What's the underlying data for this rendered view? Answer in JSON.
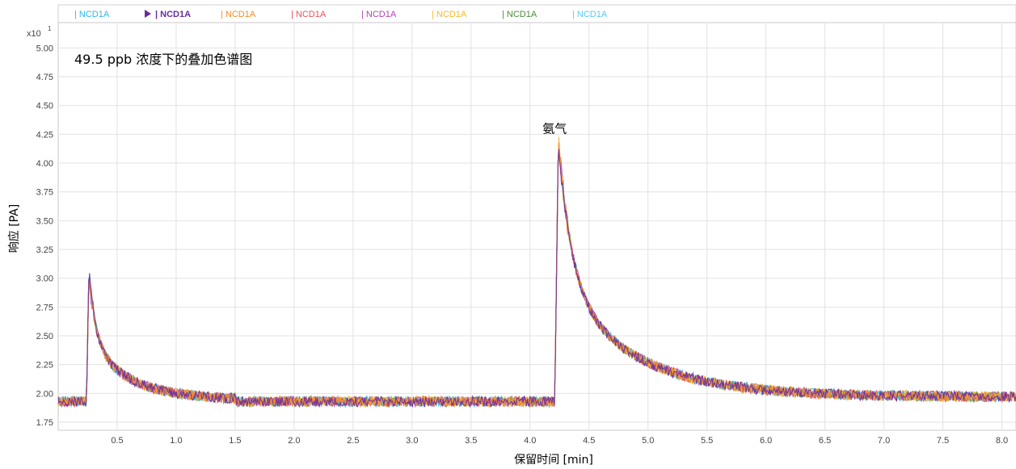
{
  "chart_data": {
    "type": "line",
    "title": "49.5 ppb 浓度下的叠加色谱图",
    "xlabel": "保留时间 [min]",
    "ylabel": "响应 [PA]",
    "y_scale_label": "x10",
    "y_scale_exponent": "1",
    "xlim": [
      0.0,
      8.12
    ],
    "ylim": [
      1.68,
      5.22
    ],
    "x_ticks": [
      "0.5",
      "1.0",
      "1.5",
      "2.0",
      "2.5",
      "3.0",
      "3.5",
      "4.0",
      "4.5",
      "5.0",
      "5.5",
      "6.0",
      "6.5",
      "7.0",
      "7.5",
      "8.0"
    ],
    "y_ticks": [
      "1.75",
      "2.00",
      "2.25",
      "2.50",
      "2.75",
      "3.00",
      "3.25",
      "3.50",
      "3.75",
      "4.00",
      "4.25",
      "4.50",
      "4.75",
      "5.00"
    ],
    "grid": true,
    "legend_position": "top",
    "annotations": [
      {
        "text": "氨气",
        "x": 4.23,
        "y": 4.29
      }
    ],
    "series": [
      {
        "name": "NCD1A",
        "color": "#2EB8E6",
        "active": false
      },
      {
        "name": "NCD1A",
        "color": "#6A2C9E",
        "active": true
      },
      {
        "name": "NCD1A",
        "color": "#F28C28",
        "active": false
      },
      {
        "name": "NCD1A",
        "color": "#E8505B",
        "active": false
      },
      {
        "name": "NCD1A",
        "color": "#B044B0",
        "active": false
      },
      {
        "name": "NCD1A",
        "color": "#F5B82E",
        "active": false
      },
      {
        "name": "NCD1A",
        "color": "#4E8A3A",
        "active": false
      },
      {
        "name": "NCD1A",
        "color": "#5BC8F0",
        "active": false
      }
    ],
    "signal_profile": {
      "baseline": 1.93,
      "noise_amplitude": 0.045,
      "peaks": [
        {
          "x_start": 0.24,
          "x_apex": 0.26,
          "height": 3.05,
          "decay_to": 2.02,
          "tail_until": 1.5
        },
        {
          "x_start": 4.21,
          "x_apex": 4.24,
          "height": 4.2,
          "decay_to": 1.97,
          "tail_until": 8.12
        }
      ]
    }
  }
}
